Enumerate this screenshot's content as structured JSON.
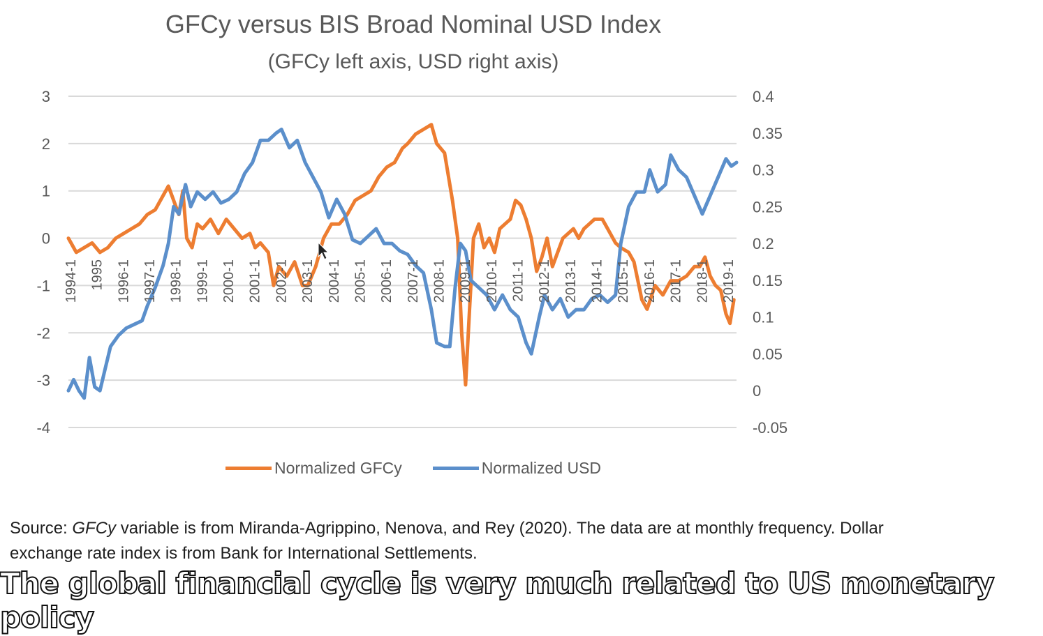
{
  "colors": {
    "gfcy": "#ED7D31",
    "usd": "#5B8FCB",
    "grid": "#D9D9D9",
    "axis_text": "#595959"
  },
  "chart_data": {
    "type": "line",
    "title": "GFCy versus BIS Broad Nominal USD Index",
    "subtitle": "(GFCy left axis, USD right axis)",
    "grid": true,
    "legend_position": "bottom",
    "x_categories": [
      "1994-1",
      "1995",
      "1996-1",
      "1997-1",
      "1998-1",
      "1999-1",
      "2000-1",
      "2001-1",
      "2002-1",
      "2003-1",
      "2004-1",
      "2005-1",
      "2006-1",
      "2007-1",
      "2008-1",
      "2009-1",
      "2010-1",
      "2011-1",
      "2012-1",
      "2013-1",
      "2014-1",
      "2015-1",
      "2016-1",
      "2017-1",
      "2018-1",
      "2019-1"
    ],
    "x_range": [
      1994.0,
      2019.4
    ],
    "y_left": {
      "range": [
        -4,
        3
      ],
      "ticks": [
        "3",
        "2",
        "1",
        "0",
        "-1",
        "-2",
        "-3",
        "-4"
      ]
    },
    "y_right": {
      "range": [
        -0.05,
        0.4
      ],
      "ticks": [
        "0.4",
        "0.35",
        "0.3",
        "0.25",
        "0.2",
        "0.15",
        "0.1",
        "0.05",
        "0",
        "-0.05"
      ]
    },
    "series": [
      {
        "name": "Normalized GFCy",
        "axis": "left",
        "points": [
          [
            1994.0,
            0.0
          ],
          [
            1994.3,
            -0.3
          ],
          [
            1994.6,
            -0.2
          ],
          [
            1994.9,
            -0.1
          ],
          [
            1995.2,
            -0.3
          ],
          [
            1995.5,
            -0.2
          ],
          [
            1995.8,
            0.0
          ],
          [
            1996.1,
            0.1
          ],
          [
            1996.4,
            0.2
          ],
          [
            1996.7,
            0.3
          ],
          [
            1997.0,
            0.5
          ],
          [
            1997.3,
            0.6
          ],
          [
            1997.6,
            0.9
          ],
          [
            1997.8,
            1.1
          ],
          [
            1998.0,
            0.8
          ],
          [
            1998.2,
            0.5
          ],
          [
            1998.35,
            1.0
          ],
          [
            1998.5,
            0.0
          ],
          [
            1998.7,
            -0.2
          ],
          [
            1998.9,
            0.3
          ],
          [
            1999.1,
            0.2
          ],
          [
            1999.4,
            0.4
          ],
          [
            1999.7,
            0.1
          ],
          [
            2000.0,
            0.4
          ],
          [
            2000.3,
            0.2
          ],
          [
            2000.6,
            0.0
          ],
          [
            2000.9,
            0.1
          ],
          [
            2001.1,
            -0.2
          ],
          [
            2001.3,
            -0.1
          ],
          [
            2001.6,
            -0.3
          ],
          [
            2001.8,
            -1.0
          ],
          [
            2002.0,
            -0.6
          ],
          [
            2002.3,
            -0.8
          ],
          [
            2002.6,
            -0.5
          ],
          [
            2002.9,
            -1.0
          ],
          [
            2003.1,
            -1.0
          ],
          [
            2003.4,
            -0.6
          ],
          [
            2003.7,
            0.0
          ],
          [
            2004.0,
            0.3
          ],
          [
            2004.3,
            0.3
          ],
          [
            2004.6,
            0.5
          ],
          [
            2004.9,
            0.8
          ],
          [
            2005.2,
            0.9
          ],
          [
            2005.5,
            1.0
          ],
          [
            2005.8,
            1.3
          ],
          [
            2006.1,
            1.5
          ],
          [
            2006.4,
            1.6
          ],
          [
            2006.7,
            1.9
          ],
          [
            2006.9,
            2.0
          ],
          [
            2007.2,
            2.2
          ],
          [
            2007.5,
            2.3
          ],
          [
            2007.8,
            2.4
          ],
          [
            2008.0,
            2.0
          ],
          [
            2008.3,
            1.8
          ],
          [
            2008.6,
            0.8
          ],
          [
            2008.8,
            0.0
          ],
          [
            2008.95,
            -2.0
          ],
          [
            2009.1,
            -3.1
          ],
          [
            2009.25,
            -1.5
          ],
          [
            2009.4,
            0.0
          ],
          [
            2009.6,
            0.3
          ],
          [
            2009.8,
            -0.2
          ],
          [
            2010.0,
            0.0
          ],
          [
            2010.2,
            -0.3
          ],
          [
            2010.4,
            0.2
          ],
          [
            2010.6,
            0.3
          ],
          [
            2010.8,
            0.4
          ],
          [
            2011.0,
            0.8
          ],
          [
            2011.2,
            0.7
          ],
          [
            2011.4,
            0.4
          ],
          [
            2011.6,
            0.0
          ],
          [
            2011.8,
            -0.7
          ],
          [
            2012.0,
            -0.4
          ],
          [
            2012.2,
            0.0
          ],
          [
            2012.4,
            -0.6
          ],
          [
            2012.6,
            -0.3
          ],
          [
            2012.8,
            0.0
          ],
          [
            2013.0,
            0.1
          ],
          [
            2013.2,
            0.2
          ],
          [
            2013.4,
            0.0
          ],
          [
            2013.6,
            0.2
          ],
          [
            2013.8,
            0.3
          ],
          [
            2014.0,
            0.4
          ],
          [
            2014.3,
            0.4
          ],
          [
            2014.5,
            0.2
          ],
          [
            2014.8,
            -0.1
          ],
          [
            2015.0,
            -0.2
          ],
          [
            2015.3,
            -0.3
          ],
          [
            2015.5,
            -0.5
          ],
          [
            2015.8,
            -1.3
          ],
          [
            2016.0,
            -1.5
          ],
          [
            2016.3,
            -1.0
          ],
          [
            2016.6,
            -1.2
          ],
          [
            2016.9,
            -0.9
          ],
          [
            2017.2,
            -0.9
          ],
          [
            2017.5,
            -0.8
          ],
          [
            2017.8,
            -0.6
          ],
          [
            2018.0,
            -0.6
          ],
          [
            2018.2,
            -0.4
          ],
          [
            2018.4,
            -0.8
          ],
          [
            2018.6,
            -1.0
          ],
          [
            2018.8,
            -1.1
          ],
          [
            2019.0,
            -1.6
          ],
          [
            2019.15,
            -1.8
          ],
          [
            2019.3,
            -1.3
          ]
        ]
      },
      {
        "name": "Normalized USD",
        "axis": "right",
        "points": [
          [
            1994.0,
            0.0
          ],
          [
            1994.2,
            0.015
          ],
          [
            1994.4,
            0.0
          ],
          [
            1994.6,
            -0.01
          ],
          [
            1994.8,
            0.045
          ],
          [
            1995.0,
            0.005
          ],
          [
            1995.2,
            0.0
          ],
          [
            1995.4,
            0.03
          ],
          [
            1995.6,
            0.06
          ],
          [
            1995.9,
            0.075
          ],
          [
            1996.2,
            0.085
          ],
          [
            1996.5,
            0.09
          ],
          [
            1996.8,
            0.095
          ],
          [
            1997.0,
            0.115
          ],
          [
            1997.3,
            0.14
          ],
          [
            1997.6,
            0.17
          ],
          [
            1997.8,
            0.2
          ],
          [
            1998.0,
            0.25
          ],
          [
            1998.2,
            0.24
          ],
          [
            1998.45,
            0.28
          ],
          [
            1998.65,
            0.25
          ],
          [
            1998.9,
            0.27
          ],
          [
            1999.2,
            0.26
          ],
          [
            1999.5,
            0.27
          ],
          [
            1999.8,
            0.255
          ],
          [
            2000.1,
            0.26
          ],
          [
            2000.4,
            0.27
          ],
          [
            2000.7,
            0.295
          ],
          [
            2001.0,
            0.31
          ],
          [
            2001.3,
            0.34
          ],
          [
            2001.6,
            0.34
          ],
          [
            2001.9,
            0.35
          ],
          [
            2002.1,
            0.355
          ],
          [
            2002.4,
            0.33
          ],
          [
            2002.7,
            0.34
          ],
          [
            2003.0,
            0.31
          ],
          [
            2003.3,
            0.29
          ],
          [
            2003.6,
            0.27
          ],
          [
            2003.9,
            0.235
          ],
          [
            2004.2,
            0.26
          ],
          [
            2004.5,
            0.24
          ],
          [
            2004.8,
            0.205
          ],
          [
            2005.1,
            0.2
          ],
          [
            2005.4,
            0.21
          ],
          [
            2005.7,
            0.22
          ],
          [
            2006.0,
            0.2
          ],
          [
            2006.3,
            0.2
          ],
          [
            2006.6,
            0.19
          ],
          [
            2006.9,
            0.185
          ],
          [
            2007.2,
            0.17
          ],
          [
            2007.5,
            0.16
          ],
          [
            2007.8,
            0.11
          ],
          [
            2008.0,
            0.065
          ],
          [
            2008.3,
            0.06
          ],
          [
            2008.5,
            0.06
          ],
          [
            2008.7,
            0.14
          ],
          [
            2008.9,
            0.2
          ],
          [
            2009.1,
            0.19
          ],
          [
            2009.3,
            0.15
          ],
          [
            2009.6,
            0.14
          ],
          [
            2009.9,
            0.13
          ],
          [
            2010.2,
            0.11
          ],
          [
            2010.5,
            0.13
          ],
          [
            2010.8,
            0.11
          ],
          [
            2011.1,
            0.1
          ],
          [
            2011.4,
            0.065
          ],
          [
            2011.6,
            0.05
          ],
          [
            2011.9,
            0.1
          ],
          [
            2012.1,
            0.13
          ],
          [
            2012.4,
            0.11
          ],
          [
            2012.7,
            0.125
          ],
          [
            2013.0,
            0.1
          ],
          [
            2013.3,
            0.11
          ],
          [
            2013.6,
            0.11
          ],
          [
            2013.9,
            0.125
          ],
          [
            2014.2,
            0.13
          ],
          [
            2014.5,
            0.12
          ],
          [
            2014.8,
            0.13
          ],
          [
            2015.0,
            0.2
          ],
          [
            2015.3,
            0.25
          ],
          [
            2015.6,
            0.27
          ],
          [
            2015.9,
            0.27
          ],
          [
            2016.1,
            0.3
          ],
          [
            2016.4,
            0.27
          ],
          [
            2016.7,
            0.28
          ],
          [
            2016.9,
            0.32
          ],
          [
            2017.2,
            0.3
          ],
          [
            2017.5,
            0.29
          ],
          [
            2017.8,
            0.265
          ],
          [
            2018.1,
            0.24
          ],
          [
            2018.4,
            0.265
          ],
          [
            2018.7,
            0.29
          ],
          [
            2019.0,
            0.315
          ],
          [
            2019.2,
            0.305
          ],
          [
            2019.4,
            0.31
          ]
        ]
      }
    ]
  },
  "source": {
    "prefix": "Source: ",
    "italic": "GFCy",
    "rest": " variable is from Miranda-Agrippino, Nenova, and Rey (2020). The data are at monthly frequency. Dollar exchange rate index is from Bank for International Settlements."
  },
  "caption": "The global financial cycle is very much related to US monetary policy"
}
